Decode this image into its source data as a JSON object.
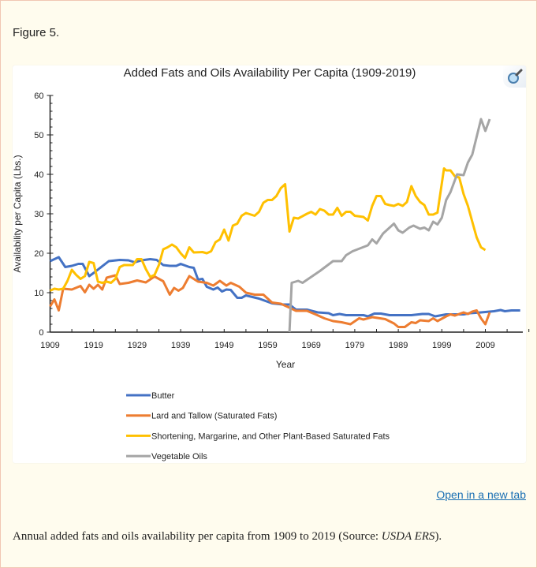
{
  "figure_label": "Figure 5.",
  "open_link": "Open in a new tab",
  "caption": {
    "text": "Annual added fats and oils availability per capita from 1909 to 2019 (Source: ",
    "source": "USDA ERS",
    "end": ")."
  },
  "zoom_icon": "magnifier-icon",
  "chart_data": {
    "type": "line",
    "title": "Added  Fats and Oils Availability Per Capita (1909-2019)",
    "xlabel": "Year",
    "ylabel": "Availability per Capita (Lbs.)",
    "xlim": [
      1909,
      2019
    ],
    "ylim": [
      0,
      60
    ],
    "xticks": [
      "1909",
      "1919",
      "1929",
      "1939",
      "1949",
      "1959",
      "1969",
      "1979",
      "1989",
      "1999",
      "2009"
    ],
    "yticks": [
      "0",
      "10",
      "20",
      "30",
      "40",
      "50",
      "60"
    ],
    "grid": false,
    "legend": "bottom",
    "series": [
      {
        "name": "Butter",
        "color": "#4472c4",
        "points": [
          [
            1909,
            18
          ],
          [
            1911,
            19
          ],
          [
            1912.5,
            16.5
          ],
          [
            1914,
            16.8
          ],
          [
            1915.5,
            17.3
          ],
          [
            1916.5,
            17.3
          ],
          [
            1918,
            14.2
          ],
          [
            1919,
            15
          ],
          [
            1922.5,
            18
          ],
          [
            1925,
            18.3
          ],
          [
            1927,
            18.2
          ],
          [
            1928.5,
            17.7
          ],
          [
            1930,
            18.2
          ],
          [
            1932,
            18.5
          ],
          [
            1933.5,
            18.3
          ],
          [
            1935,
            17
          ],
          [
            1936.5,
            16.8
          ],
          [
            1938,
            16.8
          ],
          [
            1939,
            17.3
          ],
          [
            1941,
            16.5
          ],
          [
            1942,
            16.3
          ],
          [
            1943,
            13.3
          ],
          [
            1944,
            13.5
          ],
          [
            1945,
            11.5
          ],
          [
            1946.5,
            10.8
          ],
          [
            1947.5,
            11.3
          ],
          [
            1948.5,
            10.3
          ],
          [
            1949.5,
            10.8
          ],
          [
            1950.5,
            10.7
          ],
          [
            1952,
            8.7
          ],
          [
            1953,
            8.7
          ],
          [
            1954,
            9.3
          ],
          [
            1957,
            8.5
          ],
          [
            1960,
            7.3
          ],
          [
            1962.5,
            7
          ],
          [
            1964,
            7
          ],
          [
            1965.5,
            5.7
          ],
          [
            1968,
            5.7
          ],
          [
            1970.5,
            5
          ],
          [
            1973,
            4.8
          ],
          [
            1974,
            4.3
          ],
          [
            1975.5,
            4.6
          ],
          [
            1977,
            4.3
          ],
          [
            1981,
            4.3
          ],
          [
            1982,
            4
          ],
          [
            1983.5,
            4.7
          ],
          [
            1985,
            4.7
          ],
          [
            1987,
            4.3
          ],
          [
            1992,
            4.3
          ],
          [
            1994.5,
            4.6
          ],
          [
            1996,
            4.6
          ],
          [
            1997.5,
            4
          ],
          [
            2000,
            4.5
          ],
          [
            2004,
            4.5
          ],
          [
            2005.5,
            4.8
          ],
          [
            2008,
            5
          ],
          [
            2011,
            5.3
          ],
          [
            2012.5,
            5.6
          ],
          [
            2013.5,
            5.3
          ],
          [
            2015,
            5.5
          ],
          [
            2017,
            5.5
          ]
        ]
      },
      {
        "name": "Lard and Tallow (Saturated Fats)",
        "color": "#ed7d31",
        "points": [
          [
            1909,
            6.5
          ],
          [
            1910,
            8.3
          ],
          [
            1911,
            5.5
          ],
          [
            1912,
            11
          ],
          [
            1914,
            10.8
          ],
          [
            1916,
            11.7
          ],
          [
            1917,
            10.1
          ],
          [
            1918,
            12
          ],
          [
            1919,
            11
          ],
          [
            1920,
            12
          ],
          [
            1921,
            10.8
          ],
          [
            1922,
            13.8
          ],
          [
            1924,
            14.4
          ],
          [
            1925,
            12.2
          ],
          [
            1927,
            12.5
          ],
          [
            1929,
            13.1
          ],
          [
            1931,
            12.6
          ],
          [
            1933,
            14.1
          ],
          [
            1935,
            12.9
          ],
          [
            1936.5,
            9.5
          ],
          [
            1937.5,
            11.2
          ],
          [
            1938.5,
            10.5
          ],
          [
            1939.5,
            11.2
          ],
          [
            1941,
            14.2
          ],
          [
            1943,
            12.8
          ],
          [
            1945,
            12.5
          ],
          [
            1946.5,
            11.8
          ],
          [
            1948,
            13
          ],
          [
            1949.5,
            11.8
          ],
          [
            1950.5,
            12.5
          ],
          [
            1952.5,
            11.5
          ],
          [
            1954,
            10
          ],
          [
            1956,
            9.5
          ],
          [
            1958,
            9.5
          ],
          [
            1960,
            7.5
          ],
          [
            1962,
            7.2
          ],
          [
            1964,
            6.2
          ],
          [
            1965.5,
            5.4
          ],
          [
            1968,
            5.4
          ],
          [
            1970,
            4.5
          ],
          [
            1972,
            3.5
          ],
          [
            1974,
            2.8
          ],
          [
            1976,
            2.5
          ],
          [
            1978,
            2
          ],
          [
            1980,
            3.5
          ],
          [
            1981,
            3.2
          ],
          [
            1983,
            3.8
          ],
          [
            1986,
            3.3
          ],
          [
            1988,
            2.2
          ],
          [
            1989,
            1.3
          ],
          [
            1990.5,
            1.3
          ],
          [
            1992,
            2.5
          ],
          [
            1993,
            2.3
          ],
          [
            1994,
            3
          ],
          [
            1996,
            2.8
          ],
          [
            1997,
            3.5
          ],
          [
            1998,
            2.8
          ],
          [
            2000,
            4
          ],
          [
            2001,
            4.5
          ],
          [
            2002,
            4.2
          ],
          [
            2004,
            5
          ],
          [
            2005,
            4.6
          ],
          [
            2006,
            5.2
          ],
          [
            2007,
            5.5
          ],
          [
            2008,
            3.5
          ],
          [
            2009,
            2
          ],
          [
            2010,
            5
          ]
        ]
      },
      {
        "name": "Shortening, Margarine, and Other Plant-Based Saturated Fats",
        "color": "#ffc000",
        "points": [
          [
            1909,
            10.5
          ],
          [
            1910,
            11
          ],
          [
            1911,
            10.8
          ],
          [
            1912,
            11
          ],
          [
            1913,
            13
          ],
          [
            1914,
            15.8
          ],
          [
            1915,
            14.5
          ],
          [
            1916,
            13.5
          ],
          [
            1917,
            14.2
          ],
          [
            1918,
            17.8
          ],
          [
            1919,
            17.5
          ],
          [
            1920,
            12.8
          ],
          [
            1921,
            12.5
          ],
          [
            1922,
            12.8
          ],
          [
            1923,
            12.5
          ],
          [
            1924,
            13.5
          ],
          [
            1925,
            16.5
          ],
          [
            1926,
            17
          ],
          [
            1928,
            17
          ],
          [
            1929,
            18.5
          ],
          [
            1930,
            18.5
          ],
          [
            1931,
            16
          ],
          [
            1932,
            14
          ],
          [
            1933,
            14.5
          ],
          [
            1934,
            17
          ],
          [
            1935,
            21
          ],
          [
            1936,
            21.5
          ],
          [
            1937,
            22.2
          ],
          [
            1938,
            21.5
          ],
          [
            1939,
            20
          ],
          [
            1940,
            18.8
          ],
          [
            1941,
            21.5
          ],
          [
            1942,
            20.2
          ],
          [
            1944,
            20.3
          ],
          [
            1945,
            20
          ],
          [
            1946,
            20.5
          ],
          [
            1947,
            22.8
          ],
          [
            1948,
            23.5
          ],
          [
            1949,
            26
          ],
          [
            1950,
            23.2
          ],
          [
            1951,
            27
          ],
          [
            1952,
            27.5
          ],
          [
            1953,
            29.5
          ],
          [
            1954,
            30.2
          ],
          [
            1956,
            29.5
          ],
          [
            1957,
            30.5
          ],
          [
            1958,
            32.8
          ],
          [
            1959,
            33.5
          ],
          [
            1960,
            33.5
          ],
          [
            1961,
            34.5
          ],
          [
            1962,
            36.5
          ],
          [
            1963,
            37.5
          ],
          [
            1964,
            25.5
          ],
          [
            1965,
            29
          ],
          [
            1966,
            28.8
          ],
          [
            1968,
            30
          ],
          [
            1969,
            30.5
          ],
          [
            1970,
            29.8
          ],
          [
            1971,
            31.2
          ],
          [
            1972,
            30.8
          ],
          [
            1973,
            29.8
          ],
          [
            1974,
            29.8
          ],
          [
            1975,
            31.5
          ],
          [
            1976,
            29.5
          ],
          [
            1977,
            30.5
          ],
          [
            1978,
            30.5
          ],
          [
            1979,
            29.5
          ],
          [
            1981,
            29.2
          ],
          [
            1982,
            28.3
          ],
          [
            1983,
            32
          ],
          [
            1984,
            34.5
          ],
          [
            1985,
            34.5
          ],
          [
            1986,
            32.5
          ],
          [
            1987,
            32.2
          ],
          [
            1988,
            32
          ],
          [
            1989,
            32.5
          ],
          [
            1990,
            32
          ],
          [
            1991,
            33
          ],
          [
            1992,
            37
          ],
          [
            1993,
            34.5
          ],
          [
            1994,
            33
          ],
          [
            1995,
            32.2
          ],
          [
            1996,
            29.8
          ],
          [
            1997,
            29.8
          ],
          [
            1998,
            30.3
          ],
          [
            1999.5,
            41.5
          ],
          [
            2000,
            41
          ],
          [
            2001,
            41
          ],
          [
            2002,
            39.5
          ],
          [
            2003,
            39.2
          ],
          [
            2004,
            35
          ],
          [
            2005,
            32
          ],
          [
            2006,
            28
          ],
          [
            2007,
            24
          ],
          [
            2008,
            21.5
          ],
          [
            2009,
            20.8
          ]
        ]
      },
      {
        "name": "Vegetable Oils",
        "color": "#a5a5a5",
        "points": [
          [
            1964,
            0
          ],
          [
            1964.5,
            12.5
          ],
          [
            1966,
            13
          ],
          [
            1967,
            12.5
          ],
          [
            1971,
            15.5
          ],
          [
            1974,
            18
          ],
          [
            1976,
            18
          ],
          [
            1977,
            19.5
          ],
          [
            1978.5,
            20.5
          ],
          [
            1982,
            22
          ],
          [
            1983,
            23.5
          ],
          [
            1984,
            22.5
          ],
          [
            1985.5,
            25
          ],
          [
            1988,
            27.5
          ],
          [
            1989,
            25.8
          ],
          [
            1990,
            25.2
          ],
          [
            1991.5,
            26.5
          ],
          [
            1992.5,
            27
          ],
          [
            1994,
            26.2
          ],
          [
            1995,
            26.5
          ],
          [
            1996,
            25.8
          ],
          [
            1997,
            28
          ],
          [
            1998,
            27.3
          ],
          [
            1999,
            29
          ],
          [
            2000,
            33.5
          ],
          [
            2001,
            35.5
          ],
          [
            2002.5,
            40
          ],
          [
            2004,
            39.8
          ],
          [
            2005,
            43
          ],
          [
            2006,
            45
          ],
          [
            2008,
            54
          ],
          [
            2009,
            51
          ],
          [
            2010,
            54
          ]
        ]
      }
    ]
  }
}
